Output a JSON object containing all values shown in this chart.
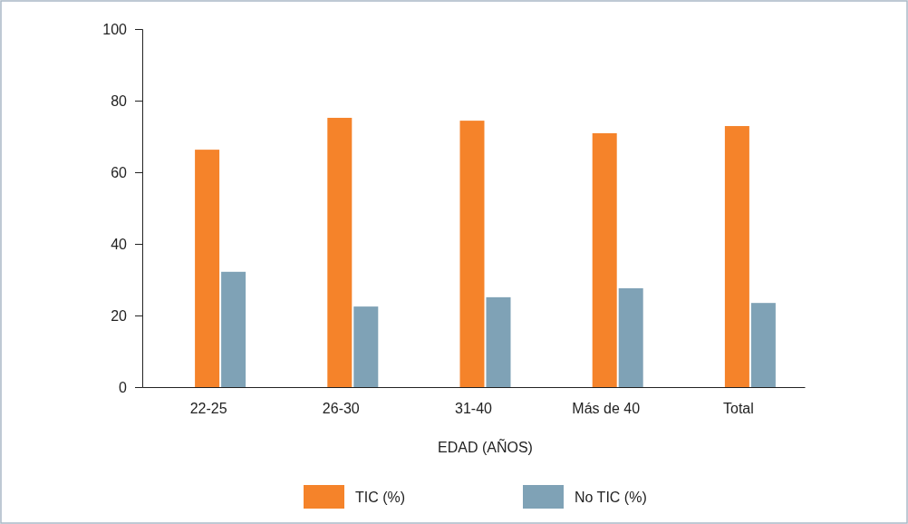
{
  "chart_data": {
    "type": "bar",
    "xlabel": "EDAD (AÑOS)",
    "categories": [
      "22-25",
      "26-30",
      "31-40",
      "Más de 40",
      "Total"
    ],
    "series": [
      {
        "name": "TIC (%)",
        "color": "#f5832a",
        "values": [
          66.3,
          75.2,
          74.4,
          70.9,
          72.9
        ]
      },
      {
        "name": "No TIC (%)",
        "color": "#7fa2b6",
        "values": [
          32.2,
          22.5,
          25.1,
          27.6,
          23.5
        ]
      }
    ],
    "ylim": [
      0,
      100
    ],
    "yticks": [
      0,
      20,
      40,
      60,
      80,
      100
    ],
    "grid": false,
    "legend": "bottom"
  }
}
